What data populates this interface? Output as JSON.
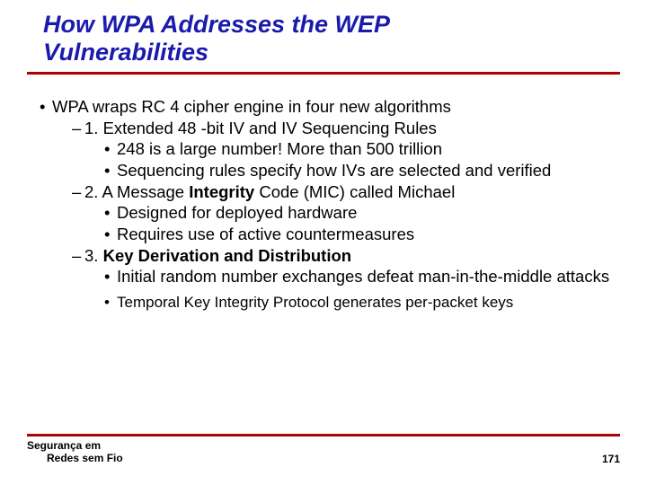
{
  "title_line1": "How WPA Addresses the WEP",
  "title_line2": "Vulnerabilities",
  "colors": {
    "title": "#1a1aad",
    "rule": "#b00000",
    "text": "#000000",
    "background": "#ffffff"
  },
  "bullets": {
    "main": "WPA wraps RC 4 cipher engine in four new algorithms",
    "s1": "1. Extended 48 -bit IV and IV Sequencing Rules",
    "s1a": "248 is a large number! More than 500 trillion",
    "s1b": "Sequencing rules specify how IVs are selected and verified",
    "s2_pre": "2. A Message ",
    "s2_bold": "Integrity",
    "s2_post": " Code (MIC) called Michael",
    "s2a": "Designed for deployed hardware",
    "s2b": "Requires use of active countermeasures",
    "s3_pre": "3. ",
    "s3_bold": "Key Derivation and Distribution",
    "s3a": "Initial random number exchanges defeat man-in-the-middle attacks",
    "s3b": "Temporal Key Integrity Protocol generates per-packet keys"
  },
  "footer": {
    "line1": "Segurança em",
    "line2": "Redes sem Fio",
    "page": "171"
  },
  "glyphs": {
    "disc": "•",
    "dash": "–"
  }
}
